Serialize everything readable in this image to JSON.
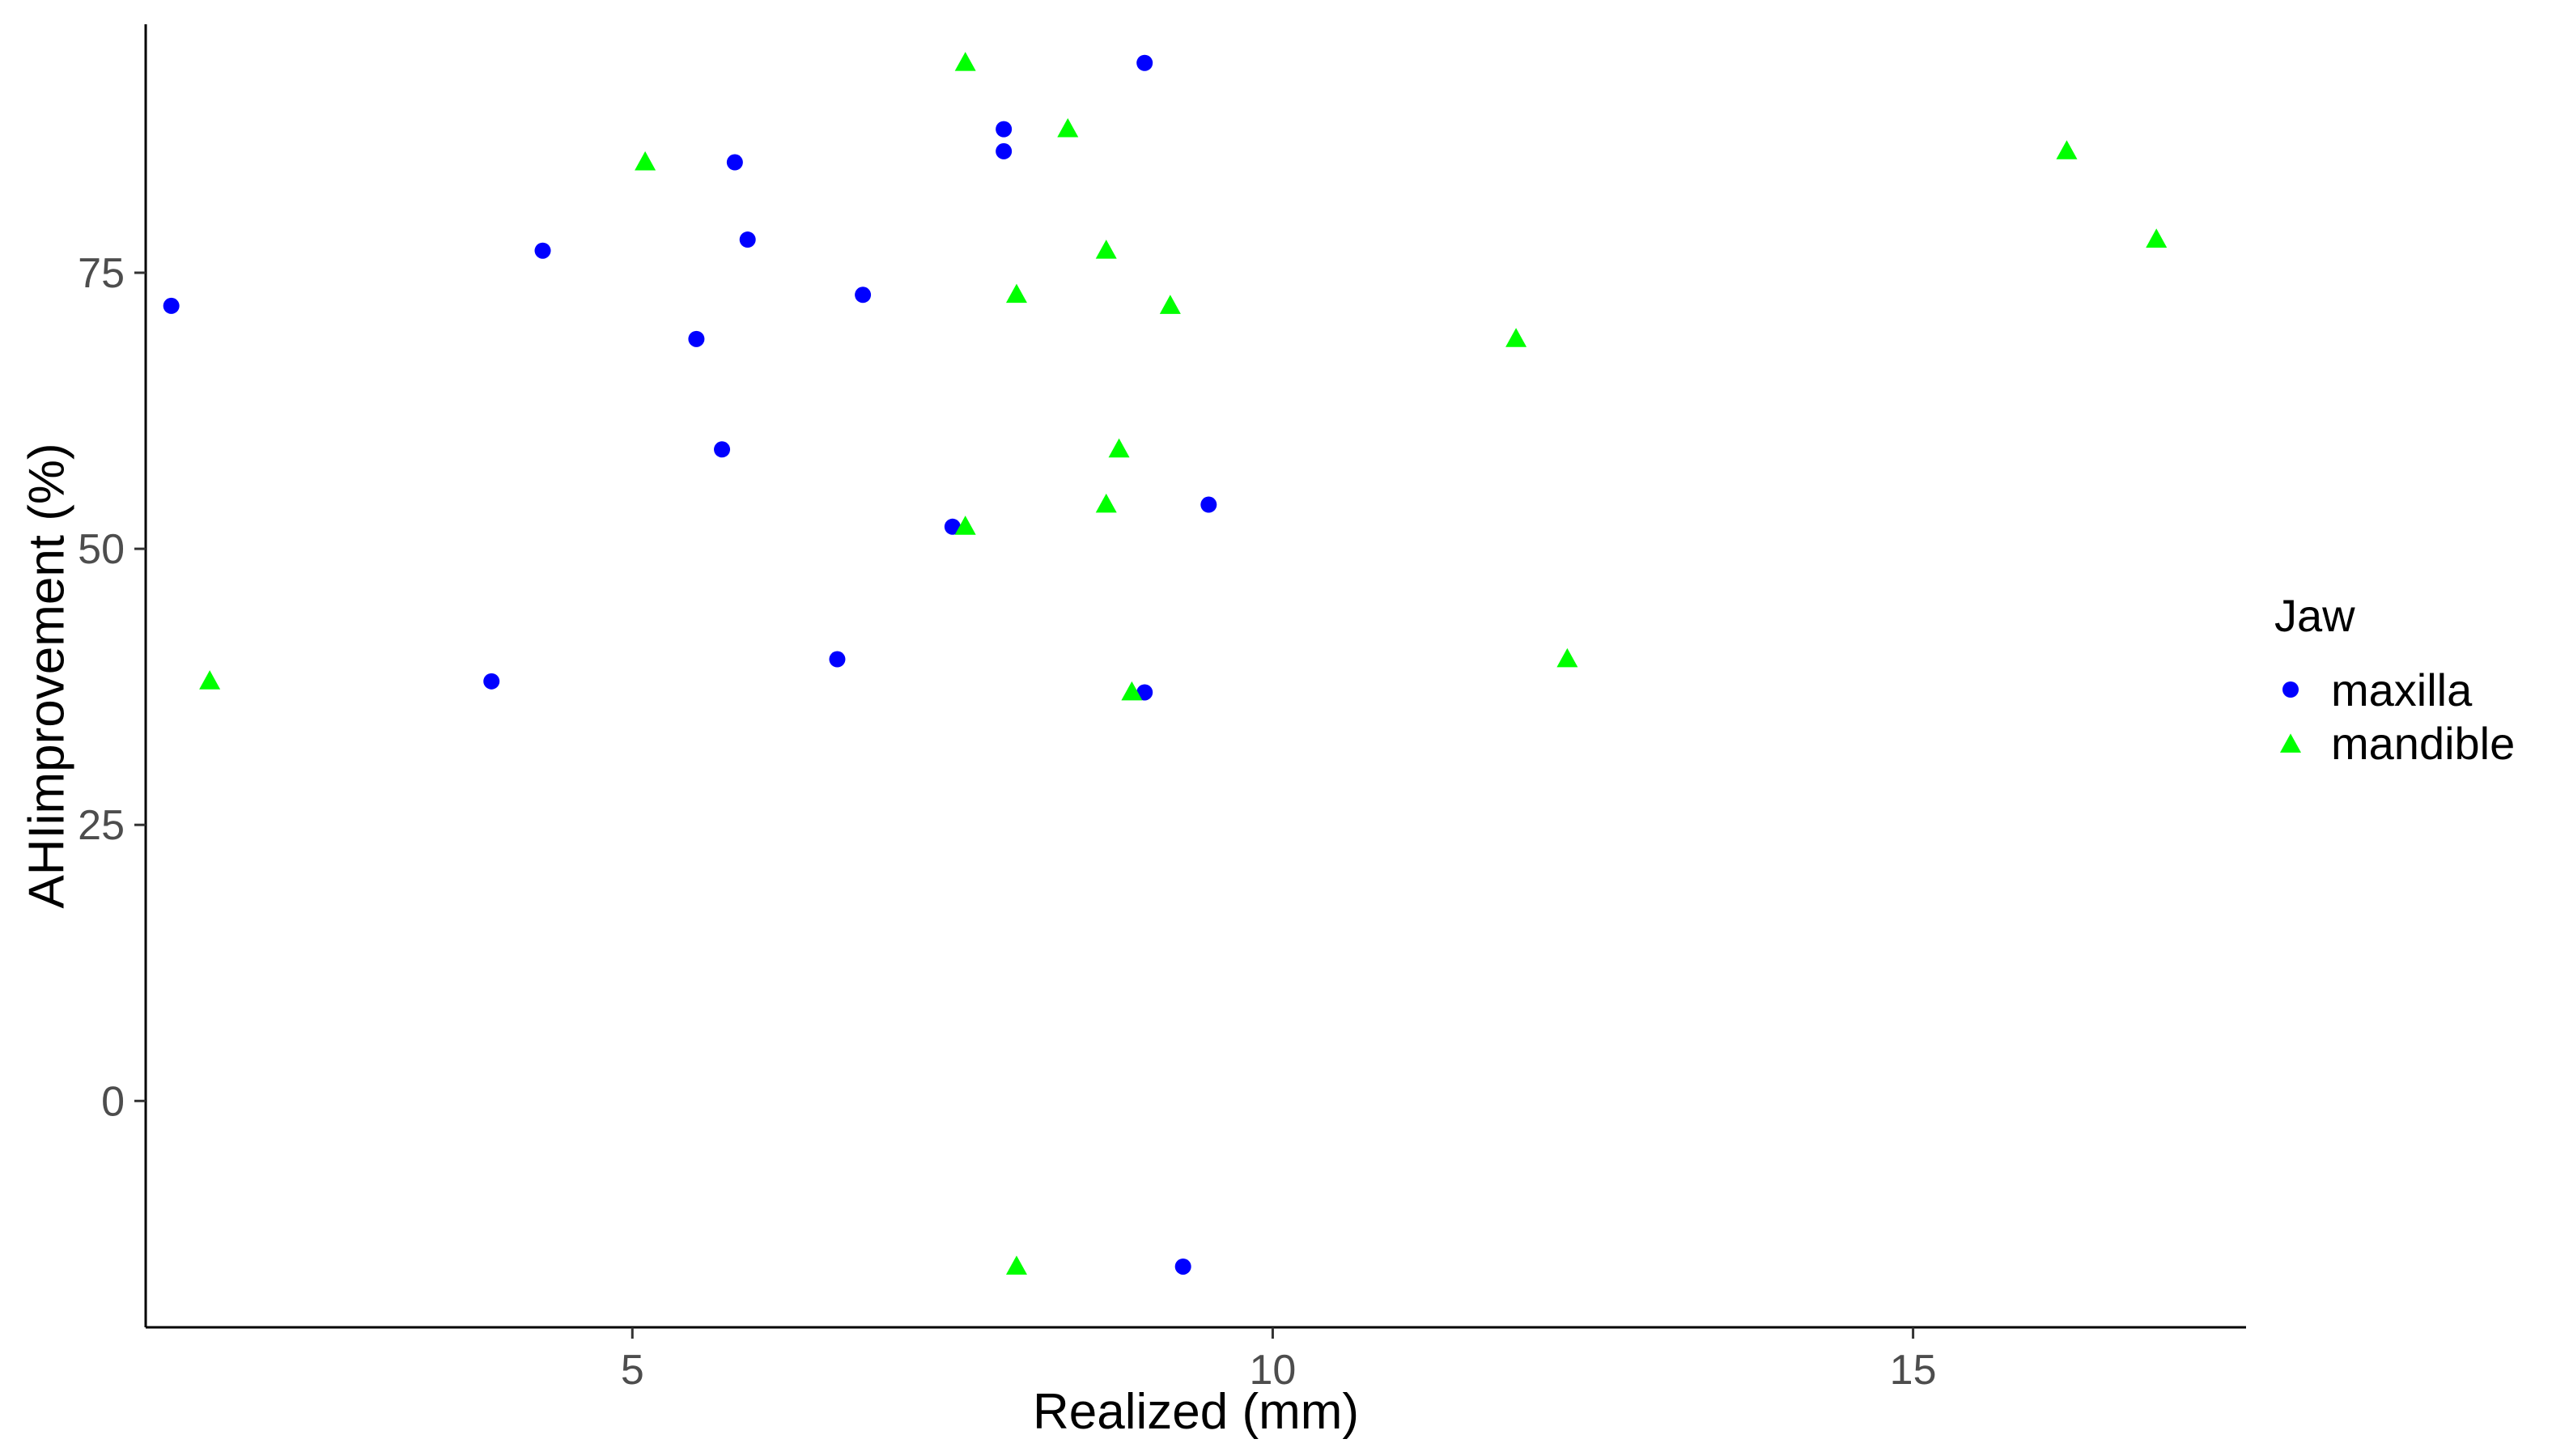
{
  "chart_data": {
    "type": "scatter",
    "title": "",
    "xlabel": "Realized (mm)",
    "ylabel": "AHIimprovement (%)",
    "xlim": [
      1.2,
      17.6
    ],
    "ylim": [
      -20.5,
      97.5
    ],
    "xticks": [
      5,
      10,
      15
    ],
    "yticks": [
      0,
      25,
      50,
      75
    ],
    "grid": false,
    "legend": {
      "title": "Jaw",
      "placement": "right",
      "entries": [
        {
          "name": "maxilla",
          "color": "#0000ff",
          "shape": "circle"
        },
        {
          "name": "mandible",
          "color": "#00ff00",
          "shape": "triangle"
        }
      ]
    },
    "series": [
      {
        "name": "maxilla",
        "color": "#0000ff",
        "shape": "circle",
        "points": [
          {
            "x": 1.4,
            "y": 72
          },
          {
            "x": 3.9,
            "y": 38
          },
          {
            "x": 4.3,
            "y": 77
          },
          {
            "x": 5.5,
            "y": 69
          },
          {
            "x": 5.7,
            "y": 59
          },
          {
            "x": 5.8,
            "y": 85
          },
          {
            "x": 5.9,
            "y": 78
          },
          {
            "x": 6.6,
            "y": 40
          },
          {
            "x": 6.8,
            "y": 73
          },
          {
            "x": 7.5,
            "y": 52
          },
          {
            "x": 7.9,
            "y": 88
          },
          {
            "x": 7.9,
            "y": 86
          },
          {
            "x": 9.0,
            "y": 94
          },
          {
            "x": 9.0,
            "y": 37
          },
          {
            "x": 9.3,
            "y": -15
          },
          {
            "x": 9.5,
            "y": 54
          }
        ]
      },
      {
        "name": "mandible",
        "color": "#00ff00",
        "shape": "triangle",
        "points": [
          {
            "x": 1.7,
            "y": 38
          },
          {
            "x": 5.1,
            "y": 85
          },
          {
            "x": 7.6,
            "y": 94
          },
          {
            "x": 7.6,
            "y": 52
          },
          {
            "x": 8.0,
            "y": 73
          },
          {
            "x": 8.0,
            "y": -15
          },
          {
            "x": 8.4,
            "y": 88
          },
          {
            "x": 8.7,
            "y": 77
          },
          {
            "x": 8.7,
            "y": 54
          },
          {
            "x": 8.8,
            "y": 59
          },
          {
            "x": 8.9,
            "y": 37
          },
          {
            "x": 9.2,
            "y": 72
          },
          {
            "x": 11.9,
            "y": 69
          },
          {
            "x": 12.3,
            "y": 40
          },
          {
            "x": 16.2,
            "y": 86
          },
          {
            "x": 16.9,
            "y": 78
          }
        ]
      }
    ]
  }
}
